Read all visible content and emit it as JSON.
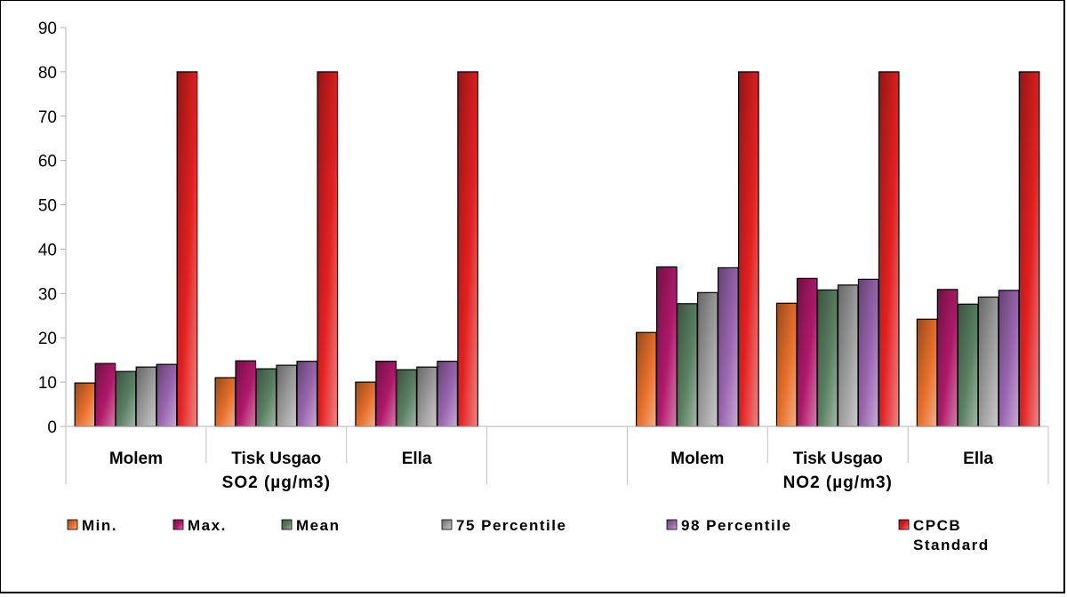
{
  "chart_data": {
    "type": "bar",
    "title": "",
    "xlabel": "",
    "ylabel": "",
    "ylim": [
      0,
      90
    ],
    "yticks": [
      0,
      10,
      20,
      30,
      40,
      50,
      60,
      70,
      80,
      90
    ],
    "grid": false,
    "legend_position": "bottom",
    "groups": [
      {
        "label": "SO2  (µg/m3)",
        "categories": [
          "Molem",
          "Tisk Usgao",
          "Ella"
        ]
      },
      {
        "label": "NO2 (µg/m3)",
        "categories": [
          "Molem",
          "Tisk Usgao",
          "Ella"
        ]
      }
    ],
    "categories": [
      "Molem",
      "Tisk Usgao",
      "Ella",
      "",
      "Molem",
      "Tisk Usgao",
      "Ella"
    ],
    "series": [
      {
        "name": "Min.",
        "color": "#E8702A",
        "values": [
          9.8,
          11.0,
          10.0,
          null,
          21.2,
          27.8,
          24.2
        ]
      },
      {
        "name": "Max.",
        "color": "#B0186A",
        "values": [
          14.2,
          14.8,
          14.7,
          null,
          36.0,
          33.4,
          30.9
        ]
      },
      {
        "name": "Mean",
        "color": "#5A8062",
        "values": [
          12.4,
          13.0,
          12.8,
          null,
          27.7,
          30.8,
          27.6
        ]
      },
      {
        "name": "75 Percentile",
        "color": "#9E9E9E",
        "values": [
          13.4,
          13.8,
          13.4,
          null,
          30.2,
          31.9,
          29.2
        ]
      },
      {
        "name": "98 Percentile",
        "color": "#9A66B0",
        "values": [
          14.0,
          14.7,
          14.7,
          null,
          35.8,
          33.2,
          30.7
        ]
      },
      {
        "name": "CPCB\nStandard",
        "color": "#E42020",
        "values": [
          80,
          80,
          80,
          null,
          80,
          80,
          80
        ]
      }
    ]
  }
}
